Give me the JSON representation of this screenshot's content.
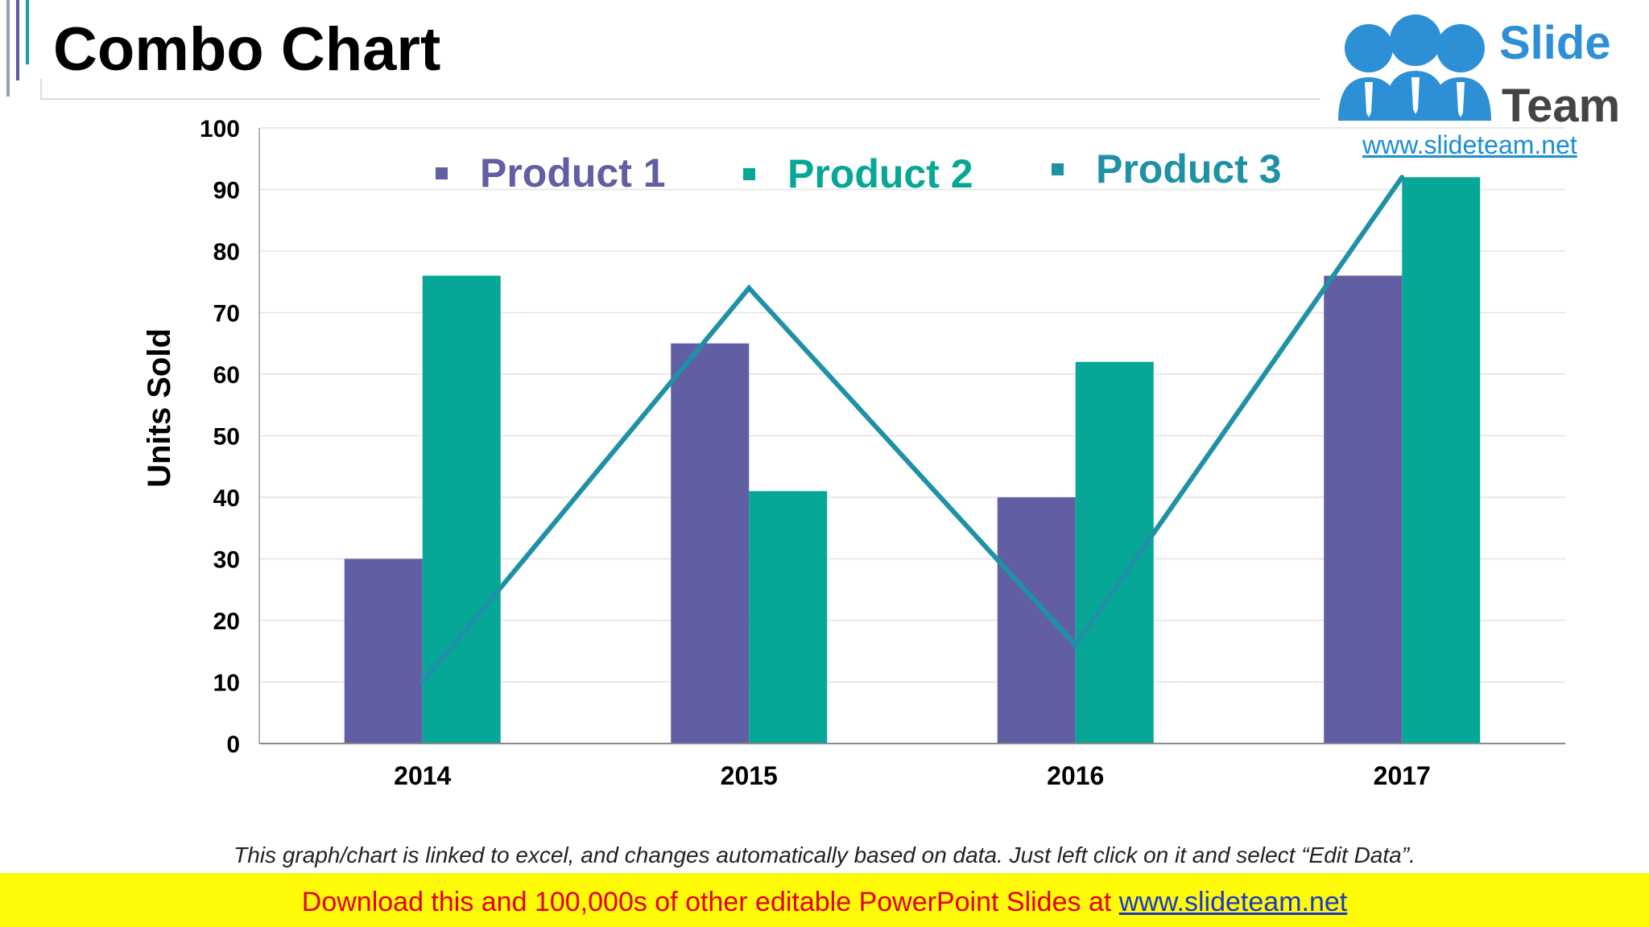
{
  "slide": {
    "title": "Combo Chart",
    "caption": "This graph/chart is linked to excel, and changes automatically based on data. Just left click on it and select “Edit Data”.",
    "banner": {
      "text": "Download this and 100,000s of other editable PowerPoint Slides at ",
      "link": "www.slideteam.net"
    },
    "logo": {
      "word1": "Slide",
      "word2": "Team",
      "url": "www.slideteam.net",
      "icon": "people-group-icon"
    }
  },
  "colors": {
    "product1": "#615ea3",
    "product2": "#06a796",
    "product3": "#1f91a6",
    "accent_bars": [
      "#8aa4b9",
      "#5e59a3",
      "#1a9cb0"
    ]
  },
  "chart_data": {
    "type": "bar",
    "combo": true,
    "categories": [
      "2014",
      "2015",
      "2016",
      "2017"
    ],
    "series": [
      {
        "name": "Product 1",
        "type": "bar",
        "values": [
          30,
          65,
          40,
          76
        ]
      },
      {
        "name": "Product 2",
        "type": "bar",
        "values": [
          76,
          41,
          62,
          92
        ]
      },
      {
        "name": "Product 3",
        "type": "line",
        "values": [
          10,
          74,
          16,
          92
        ]
      }
    ],
    "ylabel": "Units Sold",
    "xlabel": "",
    "ylim": [
      0,
      100
    ],
    "yticks": [
      "0",
      "10",
      "20",
      "30",
      "40",
      "50",
      "60",
      "70",
      "80",
      "90",
      "100"
    ],
    "grid": true,
    "legend_position": "top"
  }
}
